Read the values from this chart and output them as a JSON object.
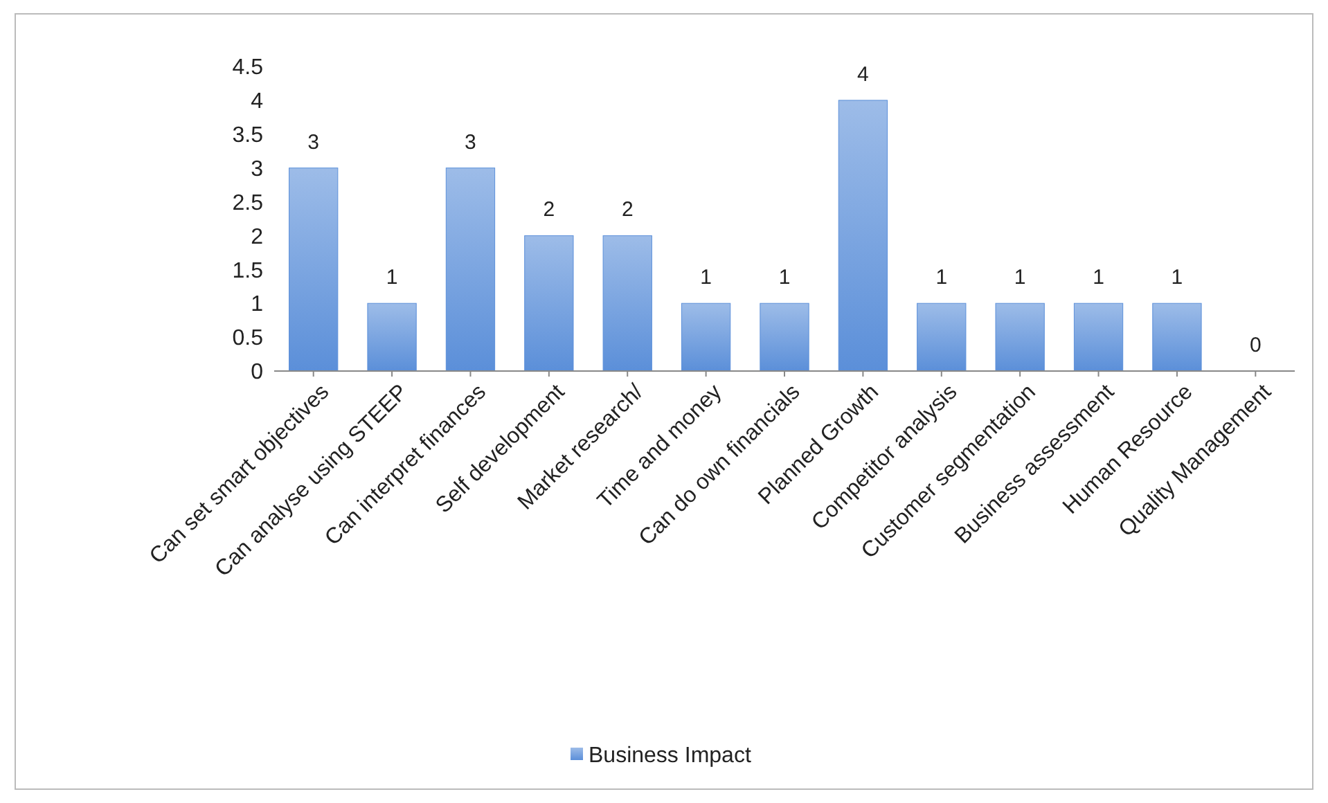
{
  "chart_data": {
    "type": "bar",
    "categories": [
      "Can set smart objectives",
      "Can analyse using STEEP",
      "Can interpret finances",
      "Self development",
      "Market research/",
      "Time and money",
      "Can do own financials",
      "Planned Growth",
      "Competitor analysis",
      "Customer segmentation",
      "Business assessment",
      "Human Resource",
      "Quality Management"
    ],
    "series": [
      {
        "name": "Business Impact",
        "color": "#5b8fd9",
        "values": [
          3,
          1,
          3,
          2,
          2,
          1,
          1,
          4,
          1,
          1,
          1,
          1,
          0
        ]
      }
    ],
    "ylim": [
      0,
      4.5
    ],
    "yticks": [
      0,
      0.5,
      1,
      1.5,
      2,
      2.5,
      3,
      3.5,
      4,
      4.5
    ],
    "data_labels": true,
    "legend": "bottom",
    "grid": false
  }
}
